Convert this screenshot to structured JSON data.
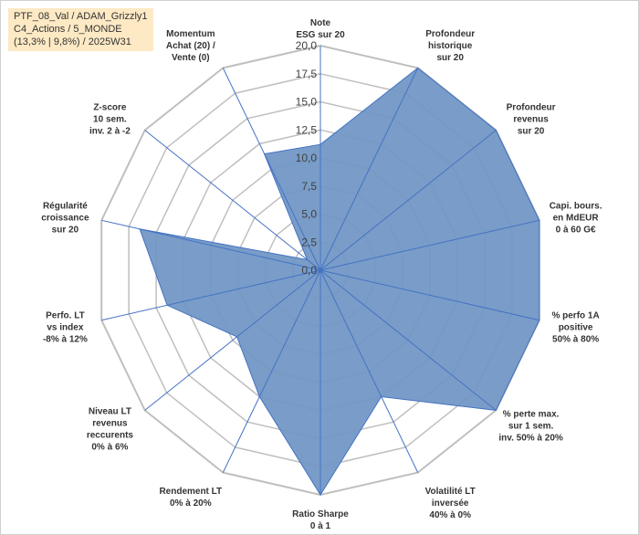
{
  "info_box": {
    "line1": "PTF_08_Val / ADAM_Grizzly1",
    "line2": "C4_Actions / 5_MONDE",
    "line3": "(13,3% | 9,8%) / 2025W31"
  },
  "chart_data": {
    "type": "radar",
    "rmin": 0,
    "rmax": 20,
    "ticks": [
      "0,0",
      "2,5",
      "5,0",
      "7,5",
      "10,0",
      "12,5",
      "15,0",
      "17,5",
      "20,0"
    ],
    "fill_color": "#6f96c4",
    "line_color": "#4472c4",
    "grid_color": "#bfbfbf",
    "axes": [
      {
        "label": [
          "Note",
          "ESG sur 20"
        ],
        "value": 11.2
      },
      {
        "label": [
          "Profondeur",
          "historique",
          "sur 20"
        ],
        "value": 20
      },
      {
        "label": [
          "Profondeur",
          "revenus",
          "sur 20"
        ],
        "value": 20
      },
      {
        "label": [
          "Capi. bours.",
          "en MdEUR",
          "0 à 60 G€"
        ],
        "value": 20
      },
      {
        "label": [
          "% perfo 1A",
          "positive",
          "50% à 80%"
        ],
        "value": 20
      },
      {
        "label": [
          "% perte max.",
          "sur 1 sem.",
          "inv. 50% à 20%"
        ],
        "value": 20
      },
      {
        "label": [
          "Volatilité LT",
          "inversée",
          "40% à 0%"
        ],
        "value": 12.5
      },
      {
        "label": [
          "Ratio Sharpe",
          "0 à 1"
        ],
        "value": 20
      },
      {
        "label": [
          "Rendement LT",
          "0% à 20%"
        ],
        "value": 12.5
      },
      {
        "label": [
          "Niveau LT",
          "revenus",
          "reccurents",
          "0% à 6%"
        ],
        "value": 9.5
      },
      {
        "label": [
          "Perfo. LT",
          "vs index",
          "-8% à 12%"
        ],
        "value": 14
      },
      {
        "label": [
          "Régularité",
          "croissance",
          "sur 20"
        ],
        "value": 16.5
      },
      {
        "label": [
          "Z-score",
          "10 sem.",
          "inv. 2 à -2"
        ],
        "value": 1.5
      },
      {
        "label": [
          "Momentum",
          "Achat (20) /",
          "Vente (0)"
        ],
        "value": 11.5
      }
    ]
  }
}
